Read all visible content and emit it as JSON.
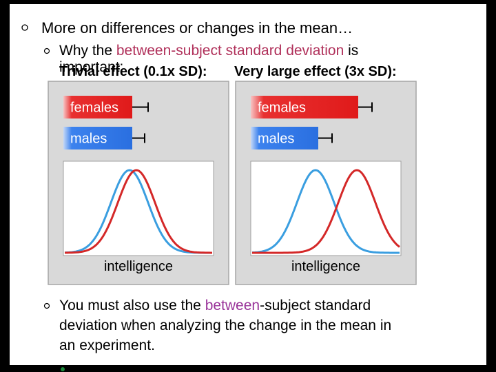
{
  "heading": "More on differences or changes in the mean…",
  "sub_bullet": {
    "before": "Why the ",
    "highlight": "between-subject standard deviation",
    "after": " is",
    "continued": "important:"
  },
  "panels": [
    {
      "title": "Trivial effect (0.1x SD):",
      "bars": [
        "females",
        "males"
      ],
      "x_label": "intelligence"
    },
    {
      "title": "Very large effect (3x SD):",
      "bars": [
        "females",
        "males"
      ],
      "x_label": "intelligence"
    }
  ],
  "bottom_bullet": {
    "before": "You must also use the ",
    "highlight": "between",
    "after": "-subject standard",
    "lines": [
      "deviation when analyzing the change in the mean in",
      "an experiment."
    ]
  }
}
